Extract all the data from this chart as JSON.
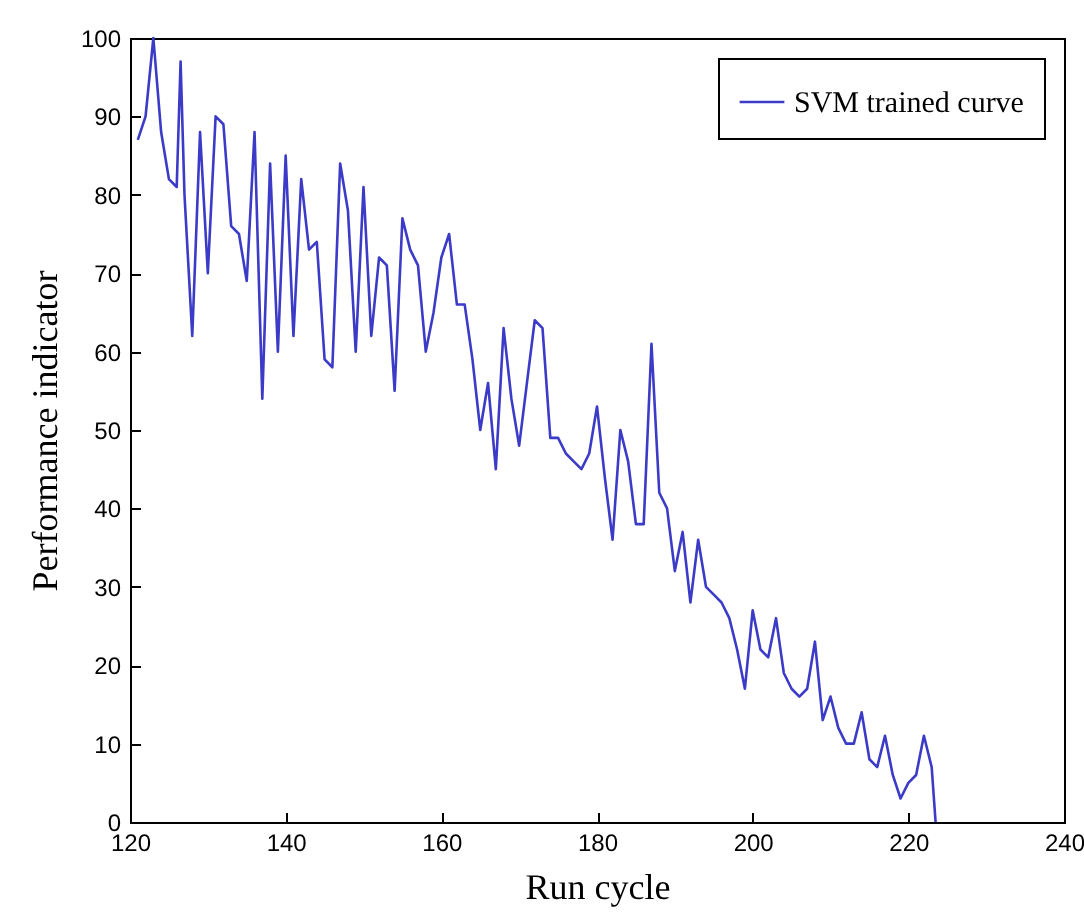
{
  "chart_data": {
    "type": "line",
    "xlabel": "Run cycle",
    "ylabel": "Performance indicator",
    "xlim": [
      120,
      240
    ],
    "xticks": [
      120,
      140,
      160,
      180,
      200,
      220,
      240
    ],
    "ylim": [
      0,
      100
    ],
    "yticks": [
      0,
      10,
      20,
      30,
      40,
      50,
      60,
      70,
      80,
      90,
      100
    ],
    "grid": false,
    "legend": "top right",
    "marker": "none",
    "line_style": "solid",
    "x": [
      121,
      122,
      123,
      124,
      125,
      126,
      126.5,
      127,
      128,
      129,
      130,
      131,
      132,
      133,
      134,
      135,
      136,
      137,
      138,
      139,
      140,
      141,
      142,
      143,
      144,
      145,
      146,
      147,
      148,
      149,
      150,
      151,
      152,
      153,
      154,
      155,
      156,
      157,
      158,
      159,
      160,
      161,
      162,
      163,
      164,
      165,
      166,
      167,
      168,
      169,
      170,
      171,
      172,
      173,
      174,
      175,
      176,
      177,
      178,
      179,
      180,
      181,
      182,
      183,
      184,
      185,
      186,
      187,
      188,
      189,
      190,
      191,
      192,
      193,
      194,
      195,
      196,
      197,
      198,
      199,
      200,
      201,
      202,
      203,
      204,
      205,
      206,
      207,
      208,
      209,
      210,
      211,
      212,
      213,
      214,
      215,
      216,
      217,
      218,
      219,
      220,
      221,
      222,
      223,
      223.5
    ],
    "series": [
      {
        "name": "SVM trained curve",
        "color": "#3b3bc8",
        "values": [
          87,
          90,
          100,
          88,
          82,
          81,
          97,
          80,
          62,
          88,
          70,
          90,
          89,
          76,
          75,
          69,
          88,
          54,
          84,
          60,
          85,
          62,
          82,
          73,
          74,
          59,
          58,
          84,
          78,
          60,
          81,
          62,
          72,
          71,
          55,
          77,
          73,
          71,
          60,
          65,
          72,
          75,
          66,
          66,
          59,
          50,
          56,
          45,
          63,
          54,
          48,
          56,
          64,
          63,
          49,
          49,
          47,
          46,
          45,
          47,
          53,
          44,
          36,
          50,
          46,
          38,
          38,
          61,
          42,
          40,
          32,
          37,
          28,
          36,
          30,
          29,
          28,
          26,
          22,
          17,
          27,
          22,
          21,
          26,
          19,
          17,
          16,
          17,
          23,
          13,
          16,
          12,
          10,
          10,
          14,
          8,
          7,
          11,
          6,
          3,
          5,
          6,
          11,
          7,
          0
        ]
      }
    ]
  }
}
